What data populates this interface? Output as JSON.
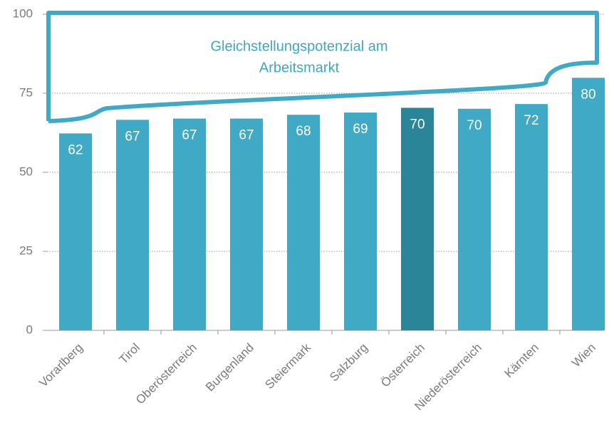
{
  "chart_data": {
    "type": "bar",
    "annotation": [
      "Gleichstellungspotenzial am",
      "Arbeitsmarkt"
    ],
    "categories": [
      "Vorarlberg",
      "Tirol",
      "Oberösterreich",
      "Burgenland",
      "Steiermark",
      "Salzburg",
      "Österreich",
      "Niederösterreich",
      "Kärnten",
      "Wien"
    ],
    "values": [
      62.3,
      66.6,
      67.0,
      67.0,
      68.2,
      68.9,
      70.4,
      70.1,
      71.6,
      79.9
    ],
    "value_labels": [
      "62",
      "67",
      "67",
      "67",
      "68",
      "69",
      "70",
      "70",
      "72",
      "80"
    ],
    "colors": [
      "#40aac6",
      "#40aac6",
      "#40aac6",
      "#40aac6",
      "#40aac6",
      "#40aac6",
      "#2a8599",
      "#40aac6",
      "#40aac6",
      "#40aac6"
    ],
    "ylim": [
      0,
      100
    ],
    "yticks": [
      0,
      25,
      50,
      75,
      100
    ],
    "grid": true
  }
}
